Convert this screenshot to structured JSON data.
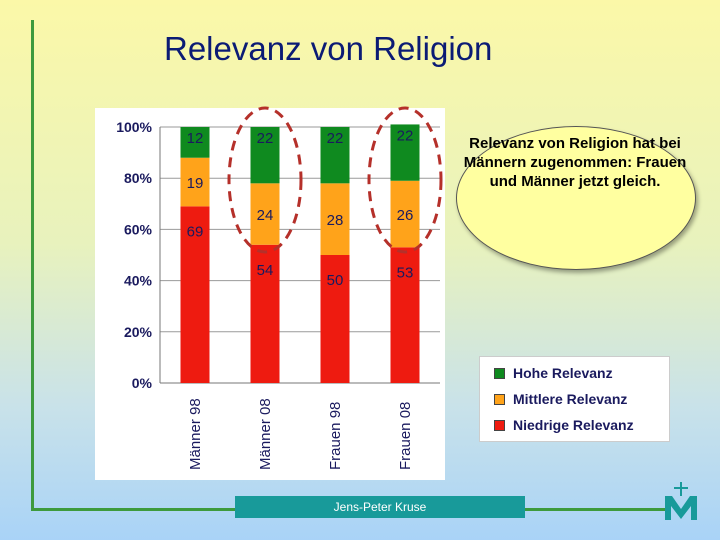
{
  "slide": {
    "title": "Relevanz von Religion",
    "footer": "Jens-Peter Kruse",
    "callout": "Relevanz von Religion hat bei Männern zugenommen: Frauen und Männer jetzt gleich."
  },
  "colors": {
    "hohe": "#0f8a1f",
    "mittlere": "#ffa31a",
    "niedrige": "#ee1b10",
    "highlight": "#b5302a",
    "accent_line": "#3d9a3d"
  },
  "chart_data": {
    "type": "bar",
    "stacked": true,
    "categories": [
      "Männer 98",
      "Männer 08",
      "Frauen 98",
      "Frauen 08"
    ],
    "series": [
      {
        "name": "Niedrige Relevanz",
        "values": [
          69,
          54,
          50,
          53
        ],
        "color": "#ee1b10"
      },
      {
        "name": "Mittlere Relevanz",
        "values": [
          19,
          24,
          28,
          26
        ],
        "color": "#ffa31a"
      },
      {
        "name": "Hohe Relevanz",
        "values": [
          12,
          22,
          22,
          22
        ],
        "color": "#0f8a1f"
      }
    ],
    "ylim": [
      0,
      100
    ],
    "yticks": [
      "0%",
      "20%",
      "40%",
      "60%",
      "80%",
      "100%"
    ],
    "highlighted_categories": [
      "Männer 08",
      "Frauen 08"
    ],
    "legend_position": "right",
    "legend": [
      "Hohe Relevanz",
      "Mittlere Relevanz",
      "Niedrige Relevanz"
    ]
  }
}
